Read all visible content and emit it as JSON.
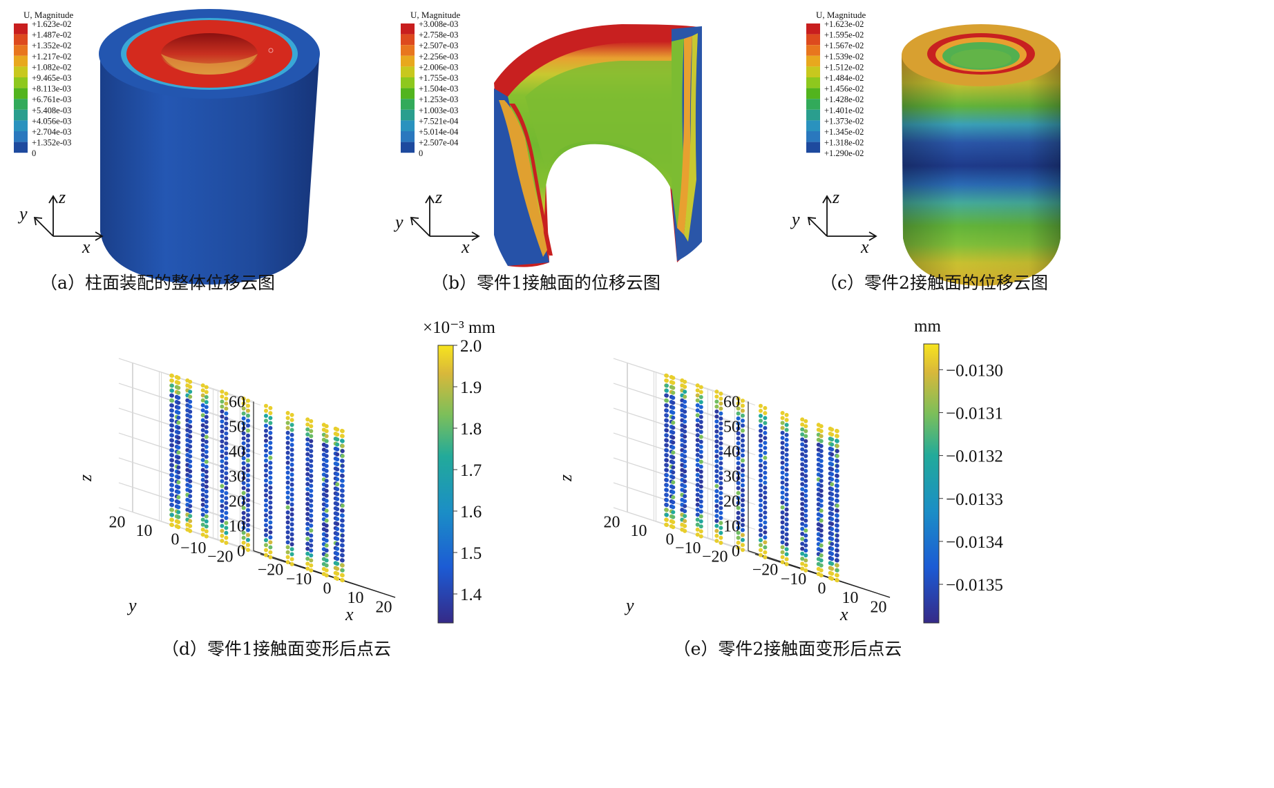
{
  "panels": {
    "a": {
      "caption": "（a）柱面装配的整体位移云图",
      "legend_title": "U, Magnitude",
      "legend_values": [
        "+1.623e-02",
        "+1.487e-02",
        "+1.352e-02",
        "+1.217e-02",
        "+1.082e-02",
        "+9.465e-03",
        "+8.113e-03",
        "+6.761e-03",
        "+5.408e-03",
        "+4.056e-03",
        "+2.704e-03",
        "+1.352e-03",
        "0"
      ],
      "axis_x": "x",
      "axis_y": "y",
      "axis_z": "z"
    },
    "b": {
      "caption": "（b）零件1接触面的位移云图",
      "legend_title": "U, Magnitude",
      "legend_values": [
        "+3.008e-03",
        "+2.758e-03",
        "+2.507e-03",
        "+2.256e-03",
        "+2.006e-03",
        "+1.755e-03",
        "+1.504e-03",
        "+1.253e-03",
        "+1.003e-03",
        "+7.521e-04",
        "+5.014e-04",
        "+2.507e-04",
        "0"
      ],
      "axis_x": "x",
      "axis_y": "y",
      "axis_z": "z"
    },
    "c": {
      "caption": "（c）零件2接触面的位移云图",
      "legend_title": "U, Magnitude",
      "legend_values": [
        "+1.623e-02",
        "+1.595e-02",
        "+1.567e-02",
        "+1.539e-02",
        "+1.512e-02",
        "+1.484e-02",
        "+1.456e-02",
        "+1.428e-02",
        "+1.401e-02",
        "+1.373e-02",
        "+1.345e-02",
        "+1.318e-02",
        "+1.290e-02"
      ],
      "axis_x": "x",
      "axis_y": "y",
      "axis_z": "z"
    }
  },
  "legend_colors": [
    "#c81e1e",
    "#dd4a1e",
    "#e8761e",
    "#e8a81e",
    "#c8c81e",
    "#8ec81e",
    "#52b41e",
    "#32aa5a",
    "#2a9e8e",
    "#2a92be",
    "#2a78be",
    "#1e4a9e"
  ],
  "chart_data": [
    {
      "type": "scatter",
      "caption": "（d）零件1接触面变形后点云",
      "xlabel": "x",
      "ylabel": "y",
      "zlabel": "z",
      "x_ticks": [
        "−20",
        "−10",
        "0",
        "10",
        "20"
      ],
      "y_ticks": [
        "20",
        "10",
        "0",
        "−10",
        "−20"
      ],
      "z_ticks": [
        "0",
        "10",
        "20",
        "30",
        "40",
        "50",
        "60"
      ],
      "zlim": [
        0,
        60
      ],
      "colorbar": {
        "unit": "×10⁻³ mm",
        "ticks": [
          "2.0",
          "1.9",
          "1.8",
          "1.7",
          "1.6",
          "1.5",
          "1.4"
        ],
        "range": [
          1.33,
          2.0
        ]
      }
    },
    {
      "type": "scatter",
      "caption": "（e）零件2接触面变形后点云",
      "xlabel": "x",
      "ylabel": "y",
      "zlabel": "z",
      "x_ticks": [
        "−20",
        "−10",
        "0",
        "10",
        "20"
      ],
      "y_ticks": [
        "20",
        "10",
        "0",
        "−10",
        "−20"
      ],
      "z_ticks": [
        "0",
        "10",
        "20",
        "30",
        "40",
        "50",
        "60"
      ],
      "zlim": [
        0,
        60
      ],
      "colorbar": {
        "unit": "mm",
        "ticks": [
          "−0.0130",
          "−0.0131",
          "−0.0132",
          "−0.0133",
          "−0.0134",
          "−0.0135"
        ],
        "range": [
          -0.01359,
          -0.01294
        ]
      }
    }
  ]
}
